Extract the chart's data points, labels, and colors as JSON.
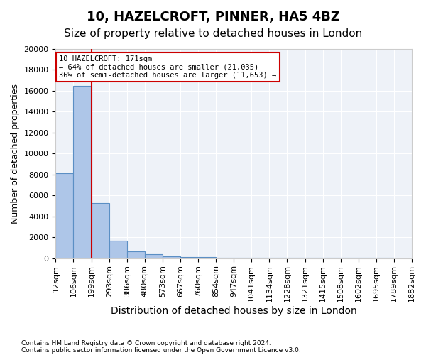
{
  "title1": "10, HAZELCROFT, PINNER, HA5 4BZ",
  "title2": "Size of property relative to detached houses in London",
  "xlabel": "Distribution of detached houses by size in London",
  "ylabel": "Number of detached properties",
  "bar_values": [
    8100,
    16500,
    5300,
    1700,
    650,
    350,
    200,
    120,
    80,
    60,
    50,
    40,
    35,
    30,
    25,
    20,
    15,
    10,
    8,
    5
  ],
  "bin_labels": [
    "12sqm",
    "106sqm",
    "199sqm",
    "293sqm",
    "386sqm",
    "480sqm",
    "573sqm",
    "667sqm",
    "760sqm",
    "854sqm",
    "947sqm",
    "1041sqm",
    "1134sqm",
    "1228sqm",
    "1321sqm",
    "1415sqm",
    "1508sqm",
    "1602sqm",
    "1695sqm",
    "1789sqm",
    "1882sqm"
  ],
  "bar_color": "#aec6e8",
  "bar_edge_color": "#5b8fc4",
  "vline_x": 1.5,
  "vline_color": "#cc0000",
  "annotation_title": "10 HAZELCROFT: 171sqm",
  "annotation_line1": "← 64% of detached houses are smaller (21,035)",
  "annotation_line2": "36% of semi-detached houses are larger (11,653) →",
  "annotation_box_color": "#ffffff",
  "annotation_box_edge": "#cc0000",
  "ylim": [
    0,
    20000
  ],
  "yticks": [
    0,
    2000,
    4000,
    6000,
    8000,
    10000,
    12000,
    14000,
    16000,
    18000,
    20000
  ],
  "footer1": "Contains HM Land Registry data © Crown copyright and database right 2024.",
  "footer2": "Contains public sector information licensed under the Open Government Licence v3.0.",
  "plot_bg_color": "#eef2f8",
  "title1_fontsize": 13,
  "title2_fontsize": 11,
  "tick_fontsize": 8,
  "ylabel_fontsize": 9,
  "xlabel_fontsize": 10
}
